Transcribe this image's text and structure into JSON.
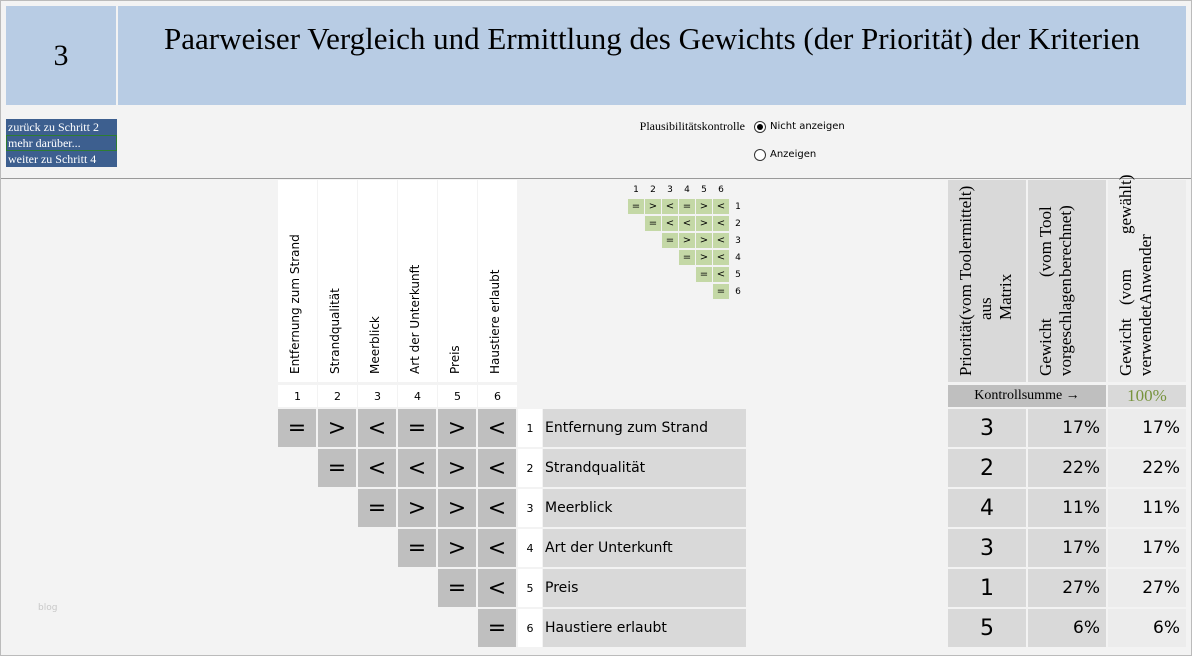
{
  "step": "3",
  "title": "Paarweiser Vergleich und Ermittlung des Gewichts (der Priorität) der Kriterien",
  "nav": [
    "zurück zu Schritt 2",
    "mehr darüber...",
    "weiter zu Schritt 4"
  ],
  "plausibility": {
    "label": "Plausibilitätskontrolle",
    "options": [
      "Nicht anzeigen",
      "Anzeigen"
    ],
    "selected": 0
  },
  "criteria": [
    {
      "number": "1",
      "label": "Entfernung zum Strand",
      "comparisons": [
        "=",
        ">",
        "<",
        "=",
        ">",
        "<"
      ],
      "priority": "3",
      "suggested": "17%",
      "used": "17%"
    },
    {
      "number": "2",
      "label": "Strandqualität",
      "comparisons": [
        "=",
        "<",
        "<",
        ">",
        "<"
      ],
      "priority": "2",
      "suggested": "22%",
      "used": "22%"
    },
    {
      "number": "3",
      "label": "Meerblick",
      "comparisons": [
        "=",
        ">",
        ">",
        "<"
      ],
      "priority": "4",
      "suggested": "11%",
      "used": "11%"
    },
    {
      "number": "4",
      "label": "Art der Unterkunft",
      "comparisons": [
        "=",
        ">",
        "<"
      ],
      "priority": "3",
      "suggested": "17%",
      "used": "17%"
    },
    {
      "number": "5",
      "label": "Preis",
      "comparisons": [
        "=",
        "<"
      ],
      "priority": "1",
      "suggested": "27%",
      "used": "27%"
    },
    {
      "number": "6",
      "label": "Haustiere erlaubt",
      "comparisons": [
        "="
      ],
      "priority": "5",
      "suggested": "6%",
      "used": "6%"
    }
  ],
  "result_headers": [
    [
      "Priorität",
      "(vom Tool aus Matrix",
      "ermittelt)"
    ],
    [
      "Gewicht vorgeschlagen",
      "(vom Tool berechnet)"
    ],
    [
      "Gewicht verwendet",
      "(vom Anwender",
      "gewählt)"
    ]
  ],
  "checksum": {
    "label": "Kontrollsumme →",
    "value": "100%"
  },
  "watermark": "blog"
}
